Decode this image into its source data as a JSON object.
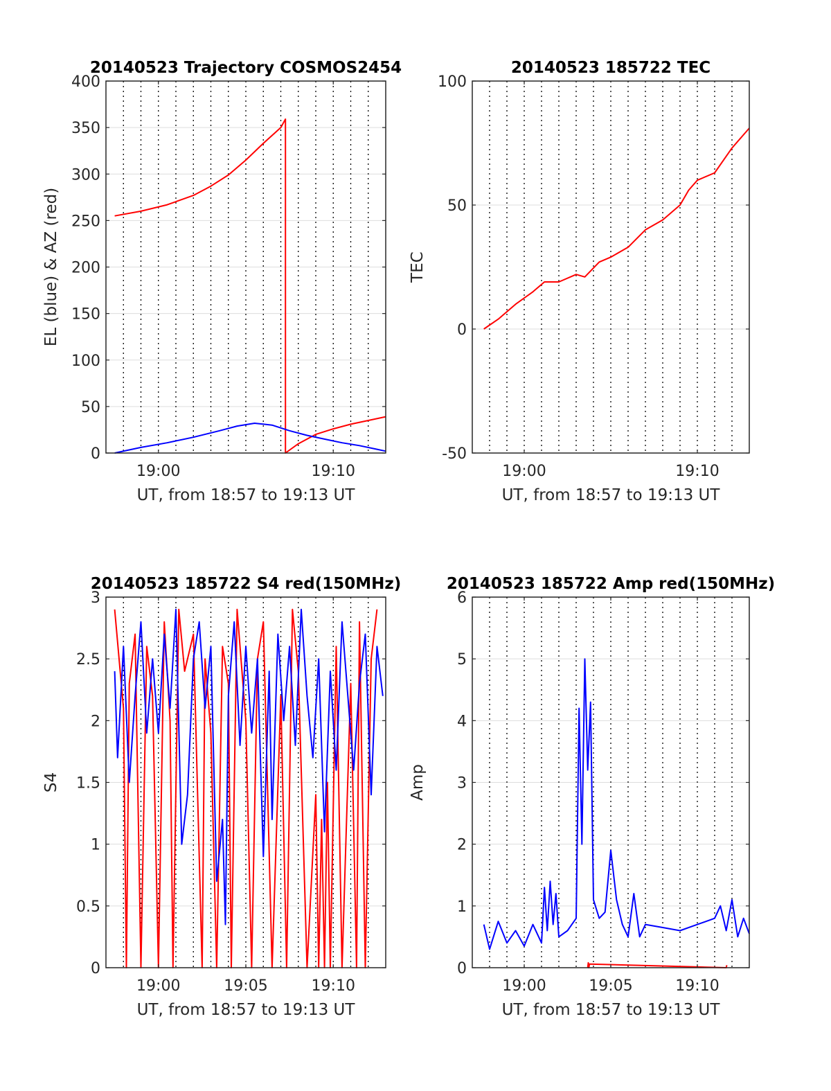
{
  "chart_data": [
    {
      "id": "trajectory",
      "type": "line",
      "title": "20140523 Trajectory COSMOS2454",
      "xlabel": "UT, from 18:57 to 19:13 UT",
      "ylabel": "EL (blue) & AZ (red)",
      "xlim": [
        "18:57",
        "19:13"
      ],
      "ylim": [
        0,
        400
      ],
      "xticks": [
        "19:00",
        "19:10"
      ],
      "yticks": [
        0,
        50,
        100,
        150,
        200,
        250,
        300,
        350,
        400
      ],
      "grid": true,
      "series": [
        {
          "color": "#ff0000",
          "x": [
            "18:57:30",
            "18:59:00",
            "19:00:30",
            "19:02:00",
            "19:03:00",
            "19:04:00",
            "19:05:00",
            "19:06:00",
            "19:07:00",
            "19:07:16",
            "19:07:16",
            "19:08:00",
            "19:09:00",
            "19:10:00",
            "19:11:00",
            "19:12:00",
            "19:13:00"
          ],
          "y": [
            255,
            260,
            267,
            277,
            287,
            299,
            315,
            333,
            350,
            359,
            0,
            10,
            20,
            26,
            31,
            35,
            39
          ]
        },
        {
          "color": "#0000ff",
          "x": [
            "18:57:30",
            "18:59:00",
            "19:00:30",
            "19:02:00",
            "19:03:30",
            "19:04:30",
            "19:05:30",
            "19:06:30",
            "19:07:30",
            "19:08:30",
            "19:09:30",
            "19:10:30",
            "19:11:30",
            "19:12:30",
            "19:13:00"
          ],
          "y": [
            0,
            6,
            11,
            17,
            24,
            29,
            32,
            30,
            24,
            19,
            15,
            11,
            8,
            4,
            2
          ]
        }
      ]
    },
    {
      "id": "tec",
      "type": "line",
      "title": "20140523 185722 TEC",
      "xlabel": "UT, from 18:57 to 19:13 UT",
      "ylabel": "TEC",
      "xlim": [
        "18:57",
        "19:13"
      ],
      "ylim": [
        -50,
        100
      ],
      "xticks": [
        "19:00",
        "19:10"
      ],
      "yticks": [
        -50,
        0,
        50,
        100
      ],
      "grid": true,
      "series": [
        {
          "color": "#ff0000",
          "x": [
            "18:57:40",
            "18:58:30",
            "18:59:30",
            "19:00:30",
            "19:01:10",
            "19:02:00",
            "19:03:00",
            "19:03:30",
            "19:04:20",
            "19:05:00",
            "19:06:00",
            "19:07:00",
            "19:08:00",
            "19:09:00",
            "19:09:30",
            "19:10:00",
            "19:11:00",
            "19:12:00",
            "19:13:00"
          ],
          "y": [
            0,
            4,
            10,
            15,
            19,
            19,
            22,
            21,
            27,
            29,
            33,
            40,
            44,
            50,
            56,
            60,
            63,
            73,
            81
          ]
        }
      ]
    },
    {
      "id": "s4",
      "type": "line",
      "title": "20140523 185722 S4 red(150MHz)",
      "xlabel": "UT, from 18:57 to 19:13 UT",
      "ylabel": "S4",
      "xlim": [
        "18:57",
        "19:13"
      ],
      "ylim": [
        0,
        3
      ],
      "xticks": [
        "19:00",
        "19:05",
        "19:10"
      ],
      "yticks": [
        0,
        0.5,
        1,
        1.5,
        2,
        2.5,
        3
      ],
      "grid": true,
      "series": [
        {
          "color": "#ff0000",
          "x": [
            "18:57:30",
            "18:58:00",
            "18:58:10",
            "18:58:20",
            "18:58:40",
            "18:59:00",
            "18:59:20",
            "18:59:40",
            "19:00:00",
            "19:00:20",
            "19:00:40",
            "19:00:50",
            "19:01:10",
            "19:01:30",
            "19:02:00",
            "19:02:30",
            "19:02:40",
            "19:03:00",
            "19:03:20",
            "19:03:40",
            "19:04:00",
            "19:04:10",
            "19:04:30",
            "19:05:00",
            "19:05:20",
            "19:05:40",
            "19:06:00",
            "19:06:30",
            "19:07:00",
            "19:07:20",
            "19:07:40",
            "19:08:00",
            "19:08:30",
            "19:09:00",
            "19:09:10",
            "19:09:20",
            "19:09:30",
            "19:09:40",
            "19:09:50",
            "19:10:10",
            "19:10:30",
            "19:11:00",
            "19:11:20",
            "19:11:30",
            "19:11:50",
            "19:12:10",
            "19:12:30"
          ],
          "y": [
            2.9,
            2.1,
            0,
            2.3,
            2.7,
            0,
            2.6,
            2.2,
            0,
            2.8,
            2.0,
            0,
            2.9,
            2.4,
            2.7,
            0,
            2.5,
            1.9,
            0,
            2.6,
            2.3,
            0,
            2.9,
            2.0,
            0,
            2.5,
            2.8,
            0,
            2.2,
            0,
            2.9,
            2.4,
            0,
            1.4,
            0,
            1.2,
            0,
            1.5,
            0,
            2.6,
            0,
            2.3,
            0,
            2.8,
            0,
            2.5,
            2.9
          ]
        },
        {
          "color": "#0000ff",
          "x": [
            "18:57:30",
            "18:57:40",
            "18:58:00",
            "18:58:20",
            "18:58:40",
            "18:59:00",
            "18:59:20",
            "18:59:40",
            "19:00:00",
            "19:00:20",
            "19:00:40",
            "19:01:00",
            "19:01:20",
            "19:01:40",
            "19:02:00",
            "19:02:20",
            "19:02:40",
            "19:03:00",
            "19:03:20",
            "19:03:40",
            "19:03:50",
            "19:04:00",
            "19:04:20",
            "19:04:40",
            "19:05:00",
            "19:05:20",
            "19:05:40",
            "19:06:00",
            "19:06:20",
            "19:06:30",
            "19:06:50",
            "19:07:10",
            "19:07:30",
            "19:07:50",
            "19:08:10",
            "19:08:30",
            "19:08:50",
            "19:09:10",
            "19:09:30",
            "19:09:50",
            "19:10:10",
            "19:10:30",
            "19:10:50",
            "19:11:10",
            "19:11:30",
            "19:11:50",
            "19:12:10",
            "19:12:30",
            "19:12:50"
          ],
          "y": [
            2.4,
            1.7,
            2.6,
            1.5,
            2.2,
            2.8,
            1.9,
            2.5,
            1.9,
            2.7,
            2.1,
            2.9,
            1.0,
            1.4,
            2.5,
            2.8,
            2.1,
            2.6,
            0.7,
            1.2,
            0.35,
            2.2,
            2.8,
            1.8,
            2.6,
            1.9,
            2.5,
            0.9,
            2.4,
            1.2,
            2.7,
            2.0,
            2.6,
            1.8,
            2.9,
            2.2,
            1.7,
            2.5,
            1.1,
            2.4,
            1.6,
            2.8,
            2.2,
            1.6,
            2.3,
            2.7,
            1.4,
            2.6,
            2.2
          ]
        }
      ]
    },
    {
      "id": "amp",
      "type": "line",
      "title": "20140523 185722 Amp red(150MHz)",
      "xlabel": "UT, from 18:57 to 19:13 UT",
      "ylabel": "Amp",
      "xlim": [
        "18:57",
        "19:13"
      ],
      "ylim": [
        0,
        6
      ],
      "xticks": [
        "19:00",
        "19:05",
        "19:10"
      ],
      "yticks": [
        0,
        1,
        2,
        3,
        4,
        5,
        6
      ],
      "grid": true,
      "series": [
        {
          "color": "#ff0000",
          "x": [
            "19:03:40",
            "19:03:42",
            "19:03:44",
            "19:03:46",
            "19:11:40",
            "19:11:42"
          ],
          "y": [
            0,
            0.08,
            0,
            0.06,
            0,
            0.04
          ]
        },
        {
          "color": "#0000ff",
          "x": [
            "18:57:40",
            "18:58:00",
            "18:58:30",
            "18:59:00",
            "18:59:30",
            "19:00:00",
            "19:00:30",
            "19:01:00",
            "19:01:10",
            "19:01:20",
            "19:01:30",
            "19:01:40",
            "19:01:50",
            "19:02:00",
            "19:02:30",
            "19:03:00",
            "19:03:10",
            "19:03:20",
            "19:03:30",
            "19:03:40",
            "19:03:50",
            "19:04:00",
            "19:04:20",
            "19:04:40",
            "19:05:00",
            "19:05:20",
            "19:05:40",
            "19:06:00",
            "19:06:20",
            "19:06:40",
            "19:07:00",
            "19:08:00",
            "19:09:00",
            "19:10:00",
            "19:11:00",
            "19:11:20",
            "19:11:40",
            "19:12:00",
            "19:12:20",
            "19:12:40",
            "19:13:00"
          ],
          "y": [
            0.7,
            0.3,
            0.75,
            0.4,
            0.6,
            0.35,
            0.7,
            0.4,
            1.3,
            0.6,
            1.4,
            0.7,
            1.2,
            0.5,
            0.6,
            0.8,
            4.2,
            2.0,
            5.0,
            3.2,
            4.3,
            1.1,
            0.8,
            0.9,
            1.9,
            1.1,
            0.7,
            0.5,
            1.2,
            0.5,
            0.7,
            0.65,
            0.6,
            0.7,
            0.8,
            1.0,
            0.6,
            1.1,
            0.5,
            0.8,
            0.55
          ]
        }
      ]
    }
  ]
}
